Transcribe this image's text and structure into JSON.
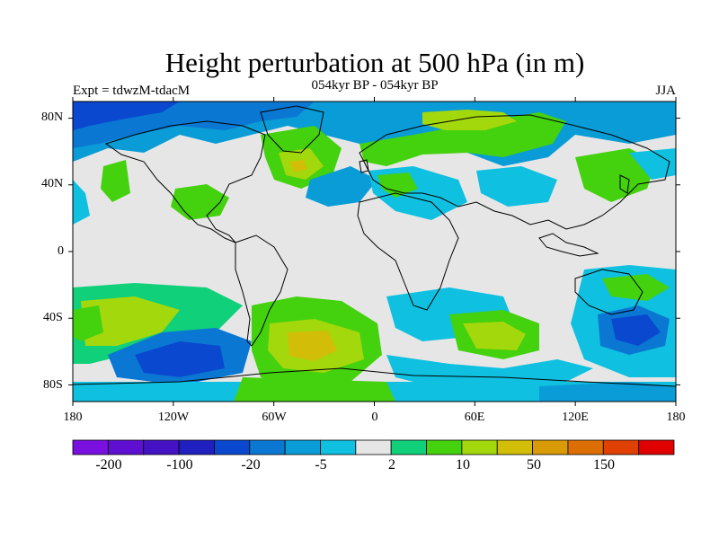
{
  "header": {
    "title": "Height perturbation at 500 hPa (in m)",
    "subtitle": "054kyr BP - 054kyr BP",
    "left_label": "Expt = tdwzM-tdacM",
    "right_label": "JJA"
  },
  "map": {
    "lat_labels": [
      "80N",
      "40N",
      "0",
      "40S",
      "80S"
    ],
    "lon_labels": [
      "180",
      "120W",
      "60W",
      "0",
      "60E",
      "120E",
      "180"
    ],
    "background_color": "#e6e6e6",
    "projection": "cylindrical equidistant"
  },
  "colorbar": {
    "colors": [
      "#7a10e0",
      "#5e0fd2",
      "#4412c4",
      "#2020c0",
      "#0a48d0",
      "#0a78d2",
      "#0a9cd6",
      "#10c0e0",
      "#e6e6e6",
      "#10d07a",
      "#44d10e",
      "#a2d80c",
      "#d2be08",
      "#d89a06",
      "#dc6e04",
      "#e04002",
      "#e00000"
    ],
    "labels": [
      "-200",
      "-100",
      "-20",
      "-5",
      "2",
      "10",
      "50",
      "150"
    ]
  }
}
